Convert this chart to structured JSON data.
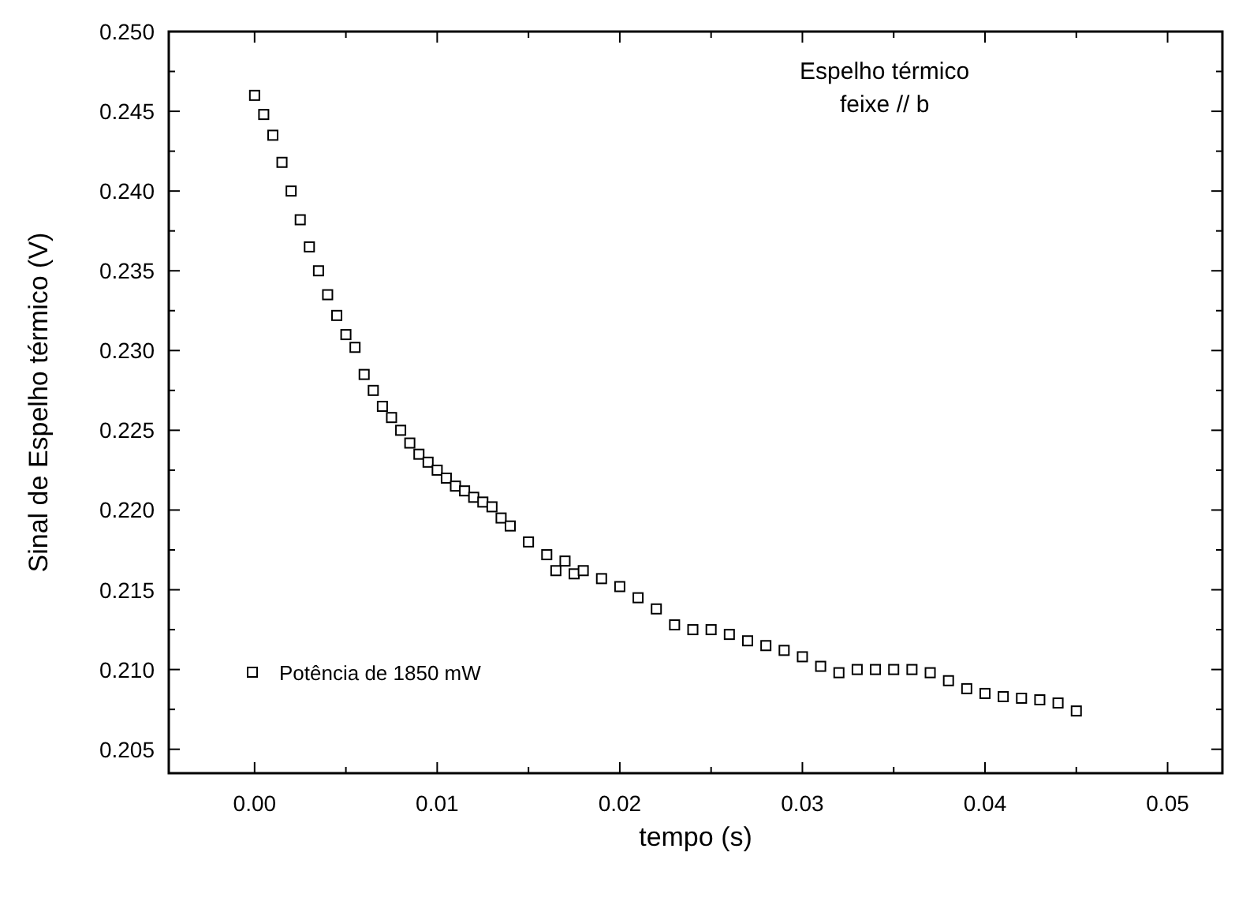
{
  "chart_data": {
    "type": "scatter",
    "xlabel": "tempo (s)",
    "ylabel": "Sinal de Espelho térmico (V)",
    "annotations": [
      "Espelho térmico\nfeixe // b"
    ],
    "xlim": [
      -0.0047,
      0.053
    ],
    "ylim": [
      0.2035,
      0.25
    ],
    "xticks": [
      {
        "value": 0,
        "label": "0.00"
      },
      {
        "value": 0.01,
        "label": "0.01"
      },
      {
        "value": 0.02,
        "label": "0.02"
      },
      {
        "value": 0.03,
        "label": "0.03"
      },
      {
        "value": 0.04,
        "label": "0.04"
      },
      {
        "value": 0.05,
        "label": "0.05"
      }
    ],
    "yticks": [
      {
        "value": 0.205,
        "label": "0.205"
      },
      {
        "value": 0.21,
        "label": "0.210"
      },
      {
        "value": 0.215,
        "label": "0.215"
      },
      {
        "value": 0.22,
        "label": "0.220"
      },
      {
        "value": 0.225,
        "label": "0.225"
      },
      {
        "value": 0.23,
        "label": "0.230"
      },
      {
        "value": 0.235,
        "label": "0.235"
      },
      {
        "value": 0.24,
        "label": "0.240"
      },
      {
        "value": 0.245,
        "label": "0.245"
      },
      {
        "value": 0.25,
        "label": "0.250"
      }
    ],
    "marker": "square",
    "legend": "bottom left",
    "grid": false,
    "series": [
      {
        "name": "Potência de 1850 mW",
        "color": "#000000",
        "x": [
          0,
          0.0005,
          0.001,
          0.0015,
          0.002,
          0.0025,
          0.003,
          0.0035,
          0.004,
          0.0045,
          0.005,
          0.0055,
          0.006,
          0.0065,
          0.007,
          0.0075,
          0.008,
          0.0085,
          0.009,
          0.0095,
          0.01,
          0.0105,
          0.011,
          0.0115,
          0.012,
          0.0125,
          0.013,
          0.0135,
          0.014,
          0.015,
          0.016,
          0.0165,
          0.017,
          0.0175,
          0.018,
          0.019,
          0.02,
          0.021,
          0.022,
          0.023,
          0.024,
          0.025,
          0.026,
          0.027,
          0.028,
          0.029,
          0.03,
          0.031,
          0.032,
          0.033,
          0.034,
          0.035,
          0.036,
          0.037,
          0.038,
          0.039,
          0.04,
          0.041,
          0.042,
          0.043,
          0.044,
          0.045
        ],
        "values": [
          0.246,
          0.2448,
          0.2435,
          0.2418,
          0.24,
          0.2382,
          0.2365,
          0.235,
          0.2335,
          0.2322,
          0.231,
          0.2302,
          0.2285,
          0.2275,
          0.2265,
          0.2258,
          0.225,
          0.2242,
          0.2235,
          0.223,
          0.2225,
          0.222,
          0.2215,
          0.2212,
          0.2208,
          0.2205,
          0.2202,
          0.2195,
          0.219,
          0.218,
          0.2172,
          0.2162,
          0.2168,
          0.216,
          0.2162,
          0.2157,
          0.2152,
          0.2145,
          0.2138,
          0.2128,
          0.2125,
          0.2125,
          0.2122,
          0.2118,
          0.2115,
          0.2112,
          0.2108,
          0.2102,
          0.2098,
          0.21,
          0.21,
          0.21,
          0.21,
          0.2098,
          0.2093,
          0.2088,
          0.2085,
          0.2083,
          0.2082,
          0.2081,
          0.2079,
          0.2074
        ]
      }
    ]
  }
}
